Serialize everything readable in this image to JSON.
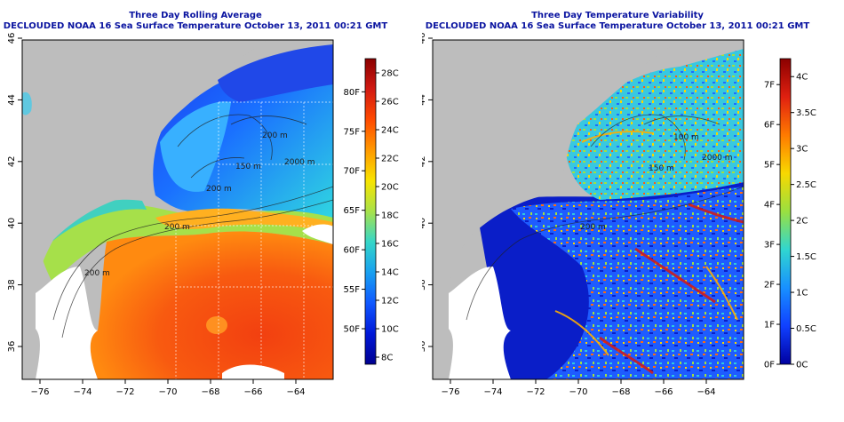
{
  "left": {
    "title": "Three Day Rolling Average",
    "subtitle": "DECLOUDED NOAA 16 Sea Surface Temperature October 13, 2011 00:21 GMT",
    "colorbar": {
      "c_labels": [
        "28C",
        "26C",
        "24C",
        "22C",
        "20C",
        "18C",
        "16C",
        "14C",
        "12C",
        "10C",
        "8C"
      ],
      "c_range": [
        7.5,
        29
      ],
      "f_labels": [
        "80F",
        "75F",
        "70F",
        "65F",
        "60F",
        "55F",
        "50F"
      ],
      "colors": [
        "#8b0000",
        "#d21a12",
        "#ff4a00",
        "#ff9a00",
        "#f8e400",
        "#a8e24a",
        "#35d6c8",
        "#18a0f0",
        "#1058ff",
        "#0018d8",
        "#000090"
      ]
    },
    "contour_labels": [
      "200 m",
      "2000 m",
      "150 m",
      "200 m",
      "200 m",
      "200 m"
    ]
  },
  "right": {
    "title": "Three Day Temperature Variability",
    "subtitle": "DECLOUDED NOAA 16 Sea Surface Temperature October 13, 2011 00:21 GMT",
    "colorbar": {
      "c_labels": [
        "4C",
        "3.5C",
        "3C",
        "2.5C",
        "2C",
        "1.5C",
        "1C",
        "0.5C",
        "0C"
      ],
      "c_range": [
        0,
        4.25
      ],
      "f_labels": [
        "7F",
        "6F",
        "5F",
        "4F",
        "3F",
        "2F",
        "1F",
        "0F"
      ],
      "colors": [
        "#8b0000",
        "#e02010",
        "#ff7a00",
        "#f8d800",
        "#9ae040",
        "#30d6d0",
        "#1890ff",
        "#1040ff",
        "#0000a0"
      ]
    },
    "contour_labels": [
      "100 m",
      "2000 m",
      "150 m",
      "200 m"
    ]
  },
  "axes": {
    "x_ticks": [
      "−76",
      "−74",
      "−72",
      "−70",
      "−68",
      "−66",
      "−64"
    ],
    "y_ticks": [
      "36",
      "38",
      "40",
      "42",
      "44",
      "46"
    ]
  }
}
